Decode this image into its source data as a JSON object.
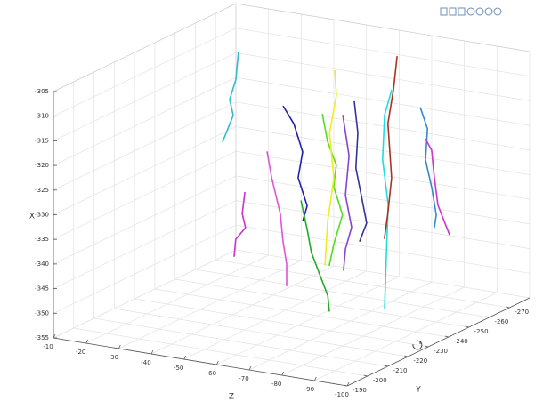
{
  "chart_data": {
    "type": "line3d",
    "xlabel": "X",
    "ylabel": "Y",
    "zlabel": "Z",
    "xlim": [
      -355,
      -305
    ],
    "xticks": [
      -355,
      -350,
      -345,
      -340,
      -335,
      -330,
      -325,
      -320,
      -315,
      -310,
      -305
    ],
    "ylim": [
      -190,
      -280
    ],
    "yticks": [
      -190,
      -200,
      -210,
      -220,
      -230,
      -240,
      -250,
      -260,
      -270
    ],
    "zlim": [
      -10,
      -100
    ],
    "zticks": [
      -10,
      -20,
      -30,
      -40,
      -50,
      -60,
      -70,
      -80,
      -90,
      -100
    ],
    "grid": true,
    "series": [
      {
        "color": "#33bbcc",
        "x": [
          -310.7,
          -316.5,
          -320.7,
          -323.8,
          -329.6
        ],
        "y": [
          -265,
          -265,
          -265,
          -265,
          -265
        ],
        "z": [
          -20.1,
          -19.3,
          -17.4,
          -18.5,
          -15.2
        ]
      },
      {
        "color": "#cc33cc",
        "x": [
          -331.0,
          -335.5,
          -338.2,
          -340.9,
          -344.5
        ],
        "y": [
          -235,
          -235,
          -235,
          -235,
          -235
        ],
        "z": [
          -40.7,
          -39.9,
          -40.9,
          -37.9,
          -37.4
        ]
      },
      {
        "color": "#dd55dd",
        "x": [
          -320.7,
          -325.8,
          -333.0,
          -338.4,
          -342.9,
          -347.4
        ],
        "y": [
          -230,
          -230,
          -230,
          -230,
          -230,
          -230
        ],
        "z": [
          -50.6,
          -52.0,
          -54.7,
          -55.5,
          -56.6,
          -56.6
        ]
      },
      {
        "color": "#2222aa",
        "x": [
          -314.9,
          -318.2,
          -323.6,
          -329.0,
          -334.4,
          -337.7
        ],
        "y": [
          -245,
          -245,
          -245,
          -245,
          -245,
          -245
        ],
        "z": [
          -46.2,
          -49.5,
          -52.2,
          -50.8,
          -53.6,
          -52.2
        ]
      },
      {
        "color": "#22aa22",
        "x": [
          -328.2,
          -333.9,
          -338.4,
          -343.0,
          -346.6,
          -349.8
        ],
        "y": [
          -225,
          -225,
          -225,
          -225,
          -225,
          -225
        ],
        "z": [
          -64.1,
          -66.0,
          -67.3,
          -70.1,
          -72.3,
          -72.8
        ]
      },
      {
        "color": "#55dd22",
        "x": [
          -317.9,
          -323.3,
          -327.8,
          -332.3,
          -337.7,
          -344.0,
          -348.5
        ],
        "y": [
          -255,
          -255,
          -255,
          -255,
          -255,
          -255,
          -255
        ],
        "z": [
          -52.0,
          -53.6,
          -56.3,
          -55.5,
          -58.2,
          -55.5,
          -54.1
        ]
      },
      {
        "color": "#eeee22",
        "x": [
          -312.6,
          -317.7,
          -325.5,
          -334.6,
          -343.6,
          -352.6
        ],
        "y": [
          -270,
          -270,
          -270,
          -270,
          -270,
          -270
        ],
        "z": [
          -46.5,
          -47.0,
          -44.9,
          -46.2,
          -44.3,
          -43.5
        ]
      },
      {
        "color": "#8844cc",
        "x": [
          -316.1,
          -324.2,
          -332.3,
          -338.6,
          -343.2,
          -347.7
        ],
        "y": [
          -250,
          -250,
          -250,
          -250,
          -250,
          -250
        ],
        "z": [
          -61.4,
          -63.3,
          -62.2,
          -64.1,
          -62.2,
          -61.6
        ]
      },
      {
        "color": "#333399",
        "x": [
          -315.6,
          -321.9,
          -329.1,
          -336.3,
          -339.9,
          -343.9
        ],
        "y": [
          -260,
          -260,
          -260,
          -260,
          -260,
          -260
        ],
        "z": [
          -58.7,
          -59.8,
          -59.2,
          -61.4,
          -62.5,
          -60.3
        ]
      },
      {
        "color": "#22dddd",
        "x": [
          -306.7,
          -312.1,
          -321.2,
          -330.2,
          -341.0,
          -351.5
        ],
        "y": [
          -240,
          -240,
          -240,
          -240,
          -240,
          -240
        ],
        "z": [
          -82.6,
          -80.4,
          -79.8,
          -81.5,
          -80.9,
          -80.4
        ]
      },
      {
        "color": "#aa3322",
        "x": [
          -309.0,
          -315.8,
          -323.0,
          -333.9,
          -341.1,
          -346.5
        ],
        "y": [
          -275,
          -275,
          -275,
          -275,
          -275,
          -275
        ],
        "z": [
          -62.5,
          -61.4,
          -59.7,
          -60.8,
          -59.7,
          -58.6
        ]
      },
      {
        "color": "#3388cc",
        "x": [
          -317.3,
          -321.4,
          -327.8,
          -333.2,
          -338.6,
          -341.3
        ],
        "y": [
          -270,
          -270,
          -270,
          -270,
          -270,
          -270
        ],
        "z": [
          -72.7,
          -74.9,
          -74.3,
          -76.2,
          -77.6,
          -77.0
        ]
      },
      {
        "color": "#cc33cc",
        "x": [
          -322.2,
          -324.3,
          -329.7,
          -335.2,
          -340.9
        ],
        "y": [
          -265,
          -265,
          -265,
          -265,
          -265
        ],
        "z": [
          -77.4,
          -79.3,
          -80.1,
          -81.2,
          -84.8
        ]
      }
    ]
  }
}
